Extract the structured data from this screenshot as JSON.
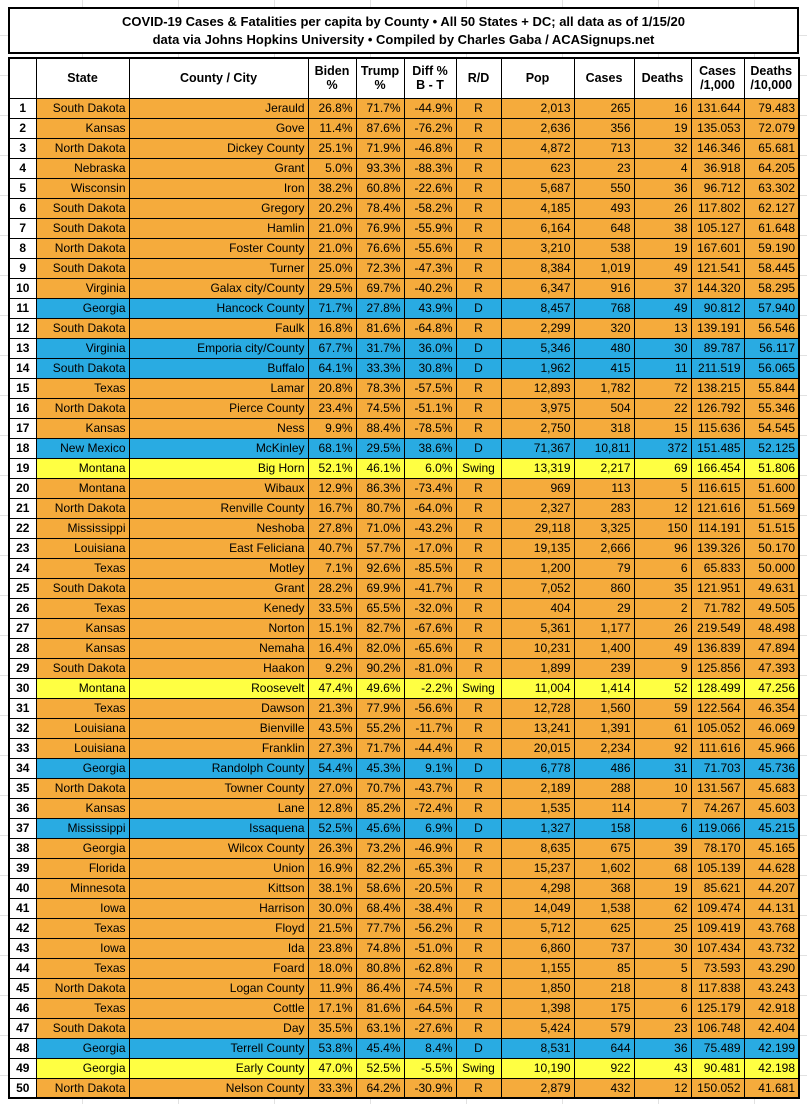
{
  "title": {
    "line1": "COVID-19 Cases & Fatalities per capita by County • All 50 States + DC; all data as of 1/15/20",
    "line2": "data via Johns Hopkins University • Compiled by Charles Gaba / ACASignups.net"
  },
  "colors": {
    "republican_row": "#F5AB3C",
    "democrat_row": "#29ABE2",
    "swing_row": "#FFFF42",
    "grid_border": "#000000",
    "header_bg": "#FFFFFF"
  },
  "header": {
    "cols": [
      {
        "l1": ""
      },
      {
        "l1": "State"
      },
      {
        "l1": "County / City"
      },
      {
        "l1": "Biden",
        "l2": "%"
      },
      {
        "l1": "Trump",
        "l2": "%"
      },
      {
        "l1": "Diff %",
        "l2": "B - T"
      },
      {
        "l1": "R/D"
      },
      {
        "l1": "Pop"
      },
      {
        "l1": "Cases"
      },
      {
        "l1": "Deaths"
      },
      {
        "l1": "Cases",
        "l2": "/1,000"
      },
      {
        "l1": "Deaths",
        "l2": "/10,000"
      }
    ]
  },
  "chart_data": {
    "type": "table",
    "title": "COVID-19 Cases & Fatalities per capita by County • All 50 States + DC; all data as of 1/15/20",
    "subtitle": "data via Johns Hopkins University • Compiled by Charles Gaba / ACASignups.net",
    "columns": [
      "#",
      "State",
      "County / City",
      "Biden %",
      "Trump %",
      "Diff % B - T",
      "R/D",
      "Pop",
      "Cases",
      "Deaths",
      "Cases /1,000",
      "Deaths /10,000"
    ],
    "rows": [
      {
        "rank": "1",
        "state": "South Dakota",
        "county": "Jerauld",
        "biden": "26.8%",
        "trump": "71.7%",
        "diff": "-44.9%",
        "rd": "R",
        "pop": "2,013",
        "cases": "265",
        "deaths": "16",
        "cases_per_1000": "131.644",
        "deaths_per_10000": "79.483"
      },
      {
        "rank": "2",
        "state": "Kansas",
        "county": "Gove",
        "biden": "11.4%",
        "trump": "87.6%",
        "diff": "-76.2%",
        "rd": "R",
        "pop": "2,636",
        "cases": "356",
        "deaths": "19",
        "cases_per_1000": "135.053",
        "deaths_per_10000": "72.079"
      },
      {
        "rank": "3",
        "state": "North Dakota",
        "county": "Dickey County",
        "biden": "25.1%",
        "trump": "71.9%",
        "diff": "-46.8%",
        "rd": "R",
        "pop": "4,872",
        "cases": "713",
        "deaths": "32",
        "cases_per_1000": "146.346",
        "deaths_per_10000": "65.681"
      },
      {
        "rank": "4",
        "state": "Nebraska",
        "county": "Grant",
        "biden": "5.0%",
        "trump": "93.3%",
        "diff": "-88.3%",
        "rd": "R",
        "pop": "623",
        "cases": "23",
        "deaths": "4",
        "cases_per_1000": "36.918",
        "deaths_per_10000": "64.205"
      },
      {
        "rank": "5",
        "state": "Wisconsin",
        "county": "Iron",
        "biden": "38.2%",
        "trump": "60.8%",
        "diff": "-22.6%",
        "rd": "R",
        "pop": "5,687",
        "cases": "550",
        "deaths": "36",
        "cases_per_1000": "96.712",
        "deaths_per_10000": "63.302"
      },
      {
        "rank": "6",
        "state": "South Dakota",
        "county": "Gregory",
        "biden": "20.2%",
        "trump": "78.4%",
        "diff": "-58.2%",
        "rd": "R",
        "pop": "4,185",
        "cases": "493",
        "deaths": "26",
        "cases_per_1000": "117.802",
        "deaths_per_10000": "62.127"
      },
      {
        "rank": "7",
        "state": "South Dakota",
        "county": "Hamlin",
        "biden": "21.0%",
        "trump": "76.9%",
        "diff": "-55.9%",
        "rd": "R",
        "pop": "6,164",
        "cases": "648",
        "deaths": "38",
        "cases_per_1000": "105.127",
        "deaths_per_10000": "61.648"
      },
      {
        "rank": "8",
        "state": "North Dakota",
        "county": "Foster County",
        "biden": "21.0%",
        "trump": "76.6%",
        "diff": "-55.6%",
        "rd": "R",
        "pop": "3,210",
        "cases": "538",
        "deaths": "19",
        "cases_per_1000": "167.601",
        "deaths_per_10000": "59.190"
      },
      {
        "rank": "9",
        "state": "South Dakota",
        "county": "Turner",
        "biden": "25.0%",
        "trump": "72.3%",
        "diff": "-47.3%",
        "rd": "R",
        "pop": "8,384",
        "cases": "1,019",
        "deaths": "49",
        "cases_per_1000": "121.541",
        "deaths_per_10000": "58.445"
      },
      {
        "rank": "10",
        "state": "Virginia",
        "county": "Galax city/County",
        "biden": "29.5%",
        "trump": "69.7%",
        "diff": "-40.2%",
        "rd": "R",
        "pop": "6,347",
        "cases": "916",
        "deaths": "37",
        "cases_per_1000": "144.320",
        "deaths_per_10000": "58.295"
      },
      {
        "rank": "11",
        "state": "Georgia",
        "county": "Hancock County",
        "biden": "71.7%",
        "trump": "27.8%",
        "diff": "43.9%",
        "rd": "D",
        "pop": "8,457",
        "cases": "768",
        "deaths": "49",
        "cases_per_1000": "90.812",
        "deaths_per_10000": "57.940"
      },
      {
        "rank": "12",
        "state": "South Dakota",
        "county": "Faulk",
        "biden": "16.8%",
        "trump": "81.6%",
        "diff": "-64.8%",
        "rd": "R",
        "pop": "2,299",
        "cases": "320",
        "deaths": "13",
        "cases_per_1000": "139.191",
        "deaths_per_10000": "56.546"
      },
      {
        "rank": "13",
        "state": "Virginia",
        "county": "Emporia city/County",
        "biden": "67.7%",
        "trump": "31.7%",
        "diff": "36.0%",
        "rd": "D",
        "pop": "5,346",
        "cases": "480",
        "deaths": "30",
        "cases_per_1000": "89.787",
        "deaths_per_10000": "56.117"
      },
      {
        "rank": "14",
        "state": "South Dakota",
        "county": "Buffalo",
        "biden": "64.1%",
        "trump": "33.3%",
        "diff": "30.8%",
        "rd": "D",
        "pop": "1,962",
        "cases": "415",
        "deaths": "11",
        "cases_per_1000": "211.519",
        "deaths_per_10000": "56.065"
      },
      {
        "rank": "15",
        "state": "Texas",
        "county": "Lamar",
        "biden": "20.8%",
        "trump": "78.3%",
        "diff": "-57.5%",
        "rd": "R",
        "pop": "12,893",
        "cases": "1,782",
        "deaths": "72",
        "cases_per_1000": "138.215",
        "deaths_per_10000": "55.844"
      },
      {
        "rank": "16",
        "state": "North Dakota",
        "county": "Pierce County",
        "biden": "23.4%",
        "trump": "74.5%",
        "diff": "-51.1%",
        "rd": "R",
        "pop": "3,975",
        "cases": "504",
        "deaths": "22",
        "cases_per_1000": "126.792",
        "deaths_per_10000": "55.346"
      },
      {
        "rank": "17",
        "state": "Kansas",
        "county": "Ness",
        "biden": "9.9%",
        "trump": "88.4%",
        "diff": "-78.5%",
        "rd": "R",
        "pop": "2,750",
        "cases": "318",
        "deaths": "15",
        "cases_per_1000": "115.636",
        "deaths_per_10000": "54.545"
      },
      {
        "rank": "18",
        "state": "New Mexico",
        "county": "McKinley",
        "biden": "68.1%",
        "trump": "29.5%",
        "diff": "38.6%",
        "rd": "D",
        "pop": "71,367",
        "cases": "10,811",
        "deaths": "372",
        "cases_per_1000": "151.485",
        "deaths_per_10000": "52.125"
      },
      {
        "rank": "19",
        "state": "Montana",
        "county": "Big Horn",
        "biden": "52.1%",
        "trump": "46.1%",
        "diff": "6.0%",
        "rd": "Swing",
        "pop": "13,319",
        "cases": "2,217",
        "deaths": "69",
        "cases_per_1000": "166.454",
        "deaths_per_10000": "51.806"
      },
      {
        "rank": "20",
        "state": "Montana",
        "county": "Wibaux",
        "biden": "12.9%",
        "trump": "86.3%",
        "diff": "-73.4%",
        "rd": "R",
        "pop": "969",
        "cases": "113",
        "deaths": "5",
        "cases_per_1000": "116.615",
        "deaths_per_10000": "51.600"
      },
      {
        "rank": "21",
        "state": "North Dakota",
        "county": "Renville County",
        "biden": "16.7%",
        "trump": "80.7%",
        "diff": "-64.0%",
        "rd": "R",
        "pop": "2,327",
        "cases": "283",
        "deaths": "12",
        "cases_per_1000": "121.616",
        "deaths_per_10000": "51.569"
      },
      {
        "rank": "22",
        "state": "Mississippi",
        "county": "Neshoba",
        "biden": "27.8%",
        "trump": "71.0%",
        "diff": "-43.2%",
        "rd": "R",
        "pop": "29,118",
        "cases": "3,325",
        "deaths": "150",
        "cases_per_1000": "114.191",
        "deaths_per_10000": "51.515"
      },
      {
        "rank": "23",
        "state": "Louisiana",
        "county": "East Feliciana",
        "biden": "40.7%",
        "trump": "57.7%",
        "diff": "-17.0%",
        "rd": "R",
        "pop": "19,135",
        "cases": "2,666",
        "deaths": "96",
        "cases_per_1000": "139.326",
        "deaths_per_10000": "50.170"
      },
      {
        "rank": "24",
        "state": "Texas",
        "county": "Motley",
        "biden": "7.1%",
        "trump": "92.6%",
        "diff": "-85.5%",
        "rd": "R",
        "pop": "1,200",
        "cases": "79",
        "deaths": "6",
        "cases_per_1000": "65.833",
        "deaths_per_10000": "50.000"
      },
      {
        "rank": "25",
        "state": "South Dakota",
        "county": "Grant",
        "biden": "28.2%",
        "trump": "69.9%",
        "diff": "-41.7%",
        "rd": "R",
        "pop": "7,052",
        "cases": "860",
        "deaths": "35",
        "cases_per_1000": "121.951",
        "deaths_per_10000": "49.631"
      },
      {
        "rank": "26",
        "state": "Texas",
        "county": "Kenedy",
        "biden": "33.5%",
        "trump": "65.5%",
        "diff": "-32.0%",
        "rd": "R",
        "pop": "404",
        "cases": "29",
        "deaths": "2",
        "cases_per_1000": "71.782",
        "deaths_per_10000": "49.505"
      },
      {
        "rank": "27",
        "state": "Kansas",
        "county": "Norton",
        "biden": "15.1%",
        "trump": "82.7%",
        "diff": "-67.6%",
        "rd": "R",
        "pop": "5,361",
        "cases": "1,177",
        "deaths": "26",
        "cases_per_1000": "219.549",
        "deaths_per_10000": "48.498"
      },
      {
        "rank": "28",
        "state": "Kansas",
        "county": "Nemaha",
        "biden": "16.4%",
        "trump": "82.0%",
        "diff": "-65.6%",
        "rd": "R",
        "pop": "10,231",
        "cases": "1,400",
        "deaths": "49",
        "cases_per_1000": "136.839",
        "deaths_per_10000": "47.894"
      },
      {
        "rank": "29",
        "state": "South Dakota",
        "county": "Haakon",
        "biden": "9.2%",
        "trump": "90.2%",
        "diff": "-81.0%",
        "rd": "R",
        "pop": "1,899",
        "cases": "239",
        "deaths": "9",
        "cases_per_1000": "125.856",
        "deaths_per_10000": "47.393"
      },
      {
        "rank": "30",
        "state": "Montana",
        "county": "Roosevelt",
        "biden": "47.4%",
        "trump": "49.6%",
        "diff": "-2.2%",
        "rd": "Swing",
        "pop": "11,004",
        "cases": "1,414",
        "deaths": "52",
        "cases_per_1000": "128.499",
        "deaths_per_10000": "47.256"
      },
      {
        "rank": "31",
        "state": "Texas",
        "county": "Dawson",
        "biden": "21.3%",
        "trump": "77.9%",
        "diff": "-56.6%",
        "rd": "R",
        "pop": "12,728",
        "cases": "1,560",
        "deaths": "59",
        "cases_per_1000": "122.564",
        "deaths_per_10000": "46.354"
      },
      {
        "rank": "32",
        "state": "Louisiana",
        "county": "Bienville",
        "biden": "43.5%",
        "trump": "55.2%",
        "diff": "-11.7%",
        "rd": "R",
        "pop": "13,241",
        "cases": "1,391",
        "deaths": "61",
        "cases_per_1000": "105.052",
        "deaths_per_10000": "46.069"
      },
      {
        "rank": "33",
        "state": "Louisiana",
        "county": "Franklin",
        "biden": "27.3%",
        "trump": "71.7%",
        "diff": "-44.4%",
        "rd": "R",
        "pop": "20,015",
        "cases": "2,234",
        "deaths": "92",
        "cases_per_1000": "111.616",
        "deaths_per_10000": "45.966"
      },
      {
        "rank": "34",
        "state": "Georgia",
        "county": "Randolph County",
        "biden": "54.4%",
        "trump": "45.3%",
        "diff": "9.1%",
        "rd": "D",
        "pop": "6,778",
        "cases": "486",
        "deaths": "31",
        "cases_per_1000": "71.703",
        "deaths_per_10000": "45.736"
      },
      {
        "rank": "35",
        "state": "North Dakota",
        "county": "Towner County",
        "biden": "27.0%",
        "trump": "70.7%",
        "diff": "-43.7%",
        "rd": "R",
        "pop": "2,189",
        "cases": "288",
        "deaths": "10",
        "cases_per_1000": "131.567",
        "deaths_per_10000": "45.683"
      },
      {
        "rank": "36",
        "state": "Kansas",
        "county": "Lane",
        "biden": "12.8%",
        "trump": "85.2%",
        "diff": "-72.4%",
        "rd": "R",
        "pop": "1,535",
        "cases": "114",
        "deaths": "7",
        "cases_per_1000": "74.267",
        "deaths_per_10000": "45.603"
      },
      {
        "rank": "37",
        "state": "Mississippi",
        "county": "Issaquena",
        "biden": "52.5%",
        "trump": "45.6%",
        "diff": "6.9%",
        "rd": "D",
        "pop": "1,327",
        "cases": "158",
        "deaths": "6",
        "cases_per_1000": "119.066",
        "deaths_per_10000": "45.215"
      },
      {
        "rank": "38",
        "state": "Georgia",
        "county": "Wilcox County",
        "biden": "26.3%",
        "trump": "73.2%",
        "diff": "-46.9%",
        "rd": "R",
        "pop": "8,635",
        "cases": "675",
        "deaths": "39",
        "cases_per_1000": "78.170",
        "deaths_per_10000": "45.165"
      },
      {
        "rank": "39",
        "state": "Florida",
        "county": "Union",
        "biden": "16.9%",
        "trump": "82.2%",
        "diff": "-65.3%",
        "rd": "R",
        "pop": "15,237",
        "cases": "1,602",
        "deaths": "68",
        "cases_per_1000": "105.139",
        "deaths_per_10000": "44.628"
      },
      {
        "rank": "40",
        "state": "Minnesota",
        "county": "Kittson",
        "biden": "38.1%",
        "trump": "58.6%",
        "diff": "-20.5%",
        "rd": "R",
        "pop": "4,298",
        "cases": "368",
        "deaths": "19",
        "cases_per_1000": "85.621",
        "deaths_per_10000": "44.207"
      },
      {
        "rank": "41",
        "state": "Iowa",
        "county": "Harrison",
        "biden": "30.0%",
        "trump": "68.4%",
        "diff": "-38.4%",
        "rd": "R",
        "pop": "14,049",
        "cases": "1,538",
        "deaths": "62",
        "cases_per_1000": "109.474",
        "deaths_per_10000": "44.131"
      },
      {
        "rank": "42",
        "state": "Texas",
        "county": "Floyd",
        "biden": "21.5%",
        "trump": "77.7%",
        "diff": "-56.2%",
        "rd": "R",
        "pop": "5,712",
        "cases": "625",
        "deaths": "25",
        "cases_per_1000": "109.419",
        "deaths_per_10000": "43.768"
      },
      {
        "rank": "43",
        "state": "Iowa",
        "county": "Ida",
        "biden": "23.8%",
        "trump": "74.8%",
        "diff": "-51.0%",
        "rd": "R",
        "pop": "6,860",
        "cases": "737",
        "deaths": "30",
        "cases_per_1000": "107.434",
        "deaths_per_10000": "43.732"
      },
      {
        "rank": "44",
        "state": "Texas",
        "county": "Foard",
        "biden": "18.0%",
        "trump": "80.8%",
        "diff": "-62.8%",
        "rd": "R",
        "pop": "1,155",
        "cases": "85",
        "deaths": "5",
        "cases_per_1000": "73.593",
        "deaths_per_10000": "43.290"
      },
      {
        "rank": "45",
        "state": "North Dakota",
        "county": "Logan County",
        "biden": "11.9%",
        "trump": "86.4%",
        "diff": "-74.5%",
        "rd": "R",
        "pop": "1,850",
        "cases": "218",
        "deaths": "8",
        "cases_per_1000": "117.838",
        "deaths_per_10000": "43.243"
      },
      {
        "rank": "46",
        "state": "Texas",
        "county": "Cottle",
        "biden": "17.1%",
        "trump": "81.6%",
        "diff": "-64.5%",
        "rd": "R",
        "pop": "1,398",
        "cases": "175",
        "deaths": "6",
        "cases_per_1000": "125.179",
        "deaths_per_10000": "42.918"
      },
      {
        "rank": "47",
        "state": "South Dakota",
        "county": "Day",
        "biden": "35.5%",
        "trump": "63.1%",
        "diff": "-27.6%",
        "rd": "R",
        "pop": "5,424",
        "cases": "579",
        "deaths": "23",
        "cases_per_1000": "106.748",
        "deaths_per_10000": "42.404"
      },
      {
        "rank": "48",
        "state": "Georgia",
        "county": "Terrell County",
        "biden": "53.8%",
        "trump": "45.4%",
        "diff": "8.4%",
        "rd": "D",
        "pop": "8,531",
        "cases": "644",
        "deaths": "36",
        "cases_per_1000": "75.489",
        "deaths_per_10000": "42.199"
      },
      {
        "rank": "49",
        "state": "Georgia",
        "county": "Early County",
        "biden": "47.0%",
        "trump": "52.5%",
        "diff": "-5.5%",
        "rd": "Swing",
        "pop": "10,190",
        "cases": "922",
        "deaths": "43",
        "cases_per_1000": "90.481",
        "deaths_per_10000": "42.198"
      },
      {
        "rank": "50",
        "state": "North Dakota",
        "county": "Nelson County",
        "biden": "33.3%",
        "trump": "64.2%",
        "diff": "-30.9%",
        "rd": "R",
        "pop": "2,879",
        "cases": "432",
        "deaths": "12",
        "cases_per_1000": "150.052",
        "deaths_per_10000": "41.681"
      }
    ],
    "legend": {
      "orange_rows": "R (Republican-won county)",
      "blue_rows": "D (Democrat-won county)",
      "yellow_rows": "Swing county"
    }
  }
}
